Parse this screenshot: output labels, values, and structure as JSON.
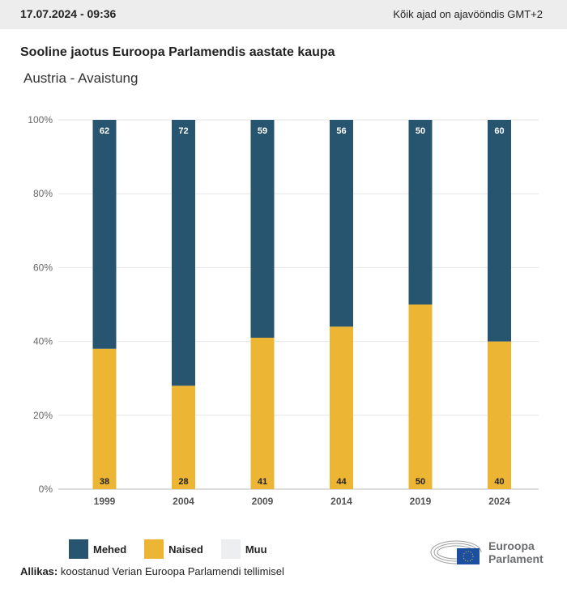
{
  "header": {
    "date": "17.07.2024 - 09:36",
    "timezone": "Kõik ajad on ajavööndis GMT+2"
  },
  "title": "Sooline jaotus Euroopa Parlamendis aastate kaupa",
  "subtitle": "Austria - Avaistung",
  "legend": [
    {
      "label": "Mehed",
      "color": "#27556f"
    },
    {
      "label": "Naised",
      "color": "#edb534"
    },
    {
      "label": "Muu",
      "color": "#edeef0"
    }
  ],
  "source": {
    "label": "Allikas:",
    "text": "koostanud Verian Euroopa Parlamendi tellimisel"
  },
  "logo": {
    "line1": "Euroopa",
    "line2": "Parlament"
  },
  "chart_data": {
    "type": "bar",
    "stacked": true,
    "categories": [
      "1999",
      "2004",
      "2009",
      "2014",
      "2019",
      "2024"
    ],
    "series": [
      {
        "name": "Naised",
        "color": "#edb534",
        "values": [
          38,
          28,
          41,
          44,
          50,
          40
        ]
      },
      {
        "name": "Mehed",
        "color": "#27556f",
        "values": [
          62,
          72,
          59,
          56,
          50,
          60
        ]
      }
    ],
    "ylim": [
      0,
      100
    ],
    "yticks": [
      "0%",
      "20%",
      "40%",
      "60%",
      "80%",
      "100%"
    ],
    "grid": true,
    "legend_position": "bottom"
  }
}
